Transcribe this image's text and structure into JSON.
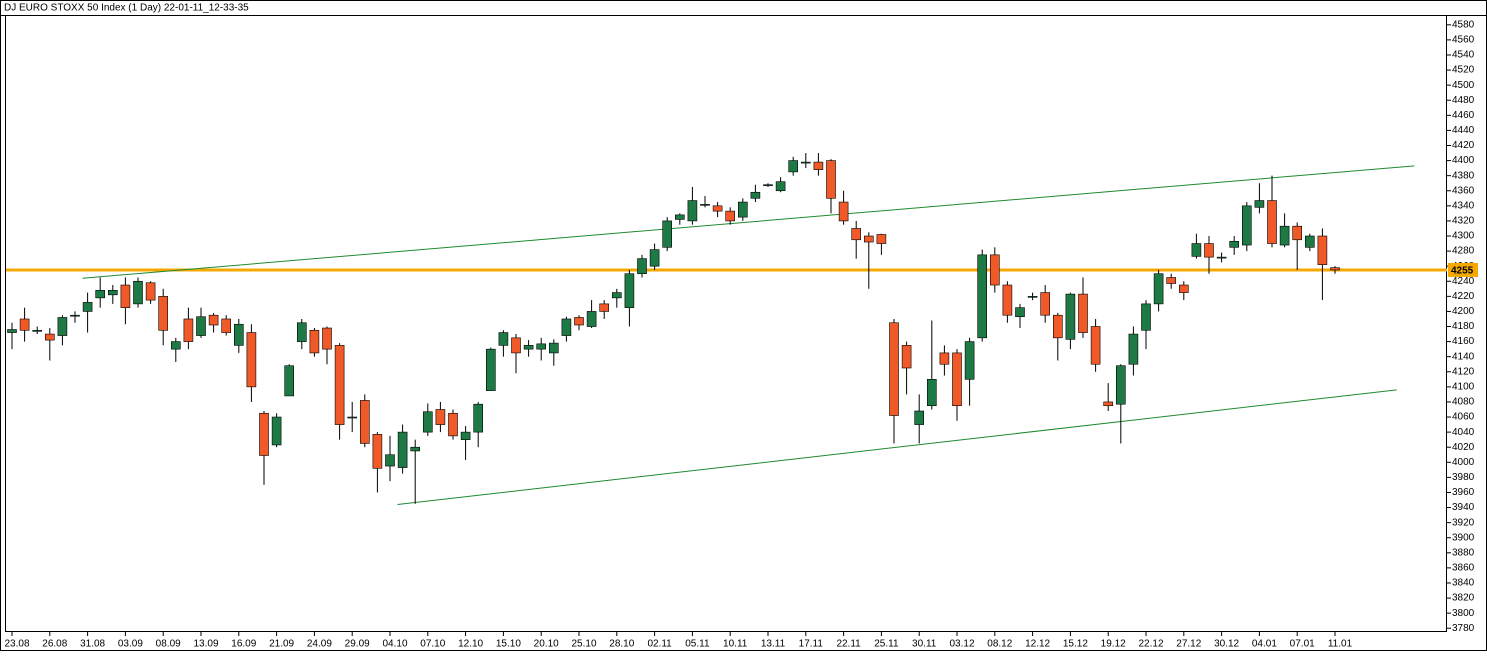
{
  "chart_data": {
    "type": "candlestick",
    "title": "DJ EURO STOXX 50 Index (1 Day) 22-01-11_12-33-35",
    "categories": [
      "23.08",
      null,
      null,
      "26.08",
      null,
      null,
      "31.08",
      null,
      null,
      "03.09",
      null,
      null,
      "08.09",
      null,
      null,
      "13.09",
      null,
      null,
      "16.09",
      null,
      null,
      "21.09",
      null,
      null,
      "24.09",
      null,
      null,
      "29.09",
      null,
      null,
      "04.10",
      null,
      null,
      "07.10",
      null,
      null,
      "12.10",
      null,
      null,
      "15.10",
      null,
      null,
      "20.10",
      null,
      null,
      "25.10",
      null,
      null,
      "28.10",
      null,
      null,
      "02.11",
      null,
      null,
      "05.11",
      null,
      null,
      "10.11",
      null,
      null,
      "13.11",
      null,
      null,
      "17.11",
      null,
      null,
      "22.11",
      null,
      null,
      "25.11",
      null,
      null,
      "30.11",
      null,
      null,
      "03.12",
      null,
      null,
      "08.12",
      null,
      null,
      "12.12",
      null,
      null,
      "15.12",
      null,
      null,
      "19.12",
      null,
      null,
      "22.12",
      null,
      null,
      "27.12",
      null,
      null,
      "30.12",
      null,
      null,
      "04.01",
      null,
      null,
      "07.01",
      null,
      null,
      "11.01"
    ],
    "open": [
      4172,
      4190,
      4175,
      4170,
      4168,
      4195,
      4200,
      4218,
      4222,
      4235,
      4210,
      4238,
      4220,
      4150,
      4190,
      4168,
      4195,
      4190,
      4155,
      4172,
      4065,
      4023,
      4088,
      4160,
      4175,
      4178,
      4155,
      4060,
      4082,
      4037,
      3995,
      3993,
      4015,
      4040,
      4070,
      4065,
      4030,
      4040,
      4095,
      4155,
      4165,
      4150,
      4150,
      4145,
      4168,
      4192,
      4180,
      4210,
      4218,
      4205,
      4250,
      4260,
      4285,
      4322,
      4320,
      4342,
      4340,
      4333,
      4325,
      4350,
      4368,
      4360,
      4385,
      4398,
      4398,
      4400,
      4345,
      4310,
      4300,
      4302,
      4185,
      4155,
      4050,
      4075,
      4145,
      4145,
      4110,
      4165,
      4275,
      4235,
      4193,
      4220,
      4225,
      4195,
      4163,
      4223,
      4180,
      4080,
      4077,
      4130,
      4175,
      4210,
      4245,
      4235,
      4273,
      4290,
      4272,
      4285,
      4288,
      4338,
      4347,
      4288,
      4313,
      4285,
      4300,
      4258
    ],
    "high": [
      4185,
      4205,
      4180,
      4178,
      4195,
      4200,
      4225,
      4245,
      4235,
      4245,
      4245,
      4240,
      4230,
      4165,
      4205,
      4205,
      4198,
      4195,
      4190,
      4183,
      4068,
      4065,
      4130,
      4190,
      4178,
      4180,
      4158,
      4080,
      4090,
      4040,
      4035,
      4050,
      4030,
      4078,
      4080,
      4070,
      4048,
      4080,
      4152,
      4175,
      4170,
      4162,
      4165,
      4163,
      4193,
      4195,
      4215,
      4215,
      4230,
      4255,
      4275,
      4290,
      4325,
      4330,
      4365,
      4353,
      4345,
      4338,
      4350,
      4368,
      4370,
      4378,
      4405,
      4410,
      4410,
      4402,
      4360,
      4320,
      4305,
      4303,
      4190,
      4160,
      4090,
      4188,
      4155,
      4150,
      4165,
      4282,
      4285,
      4240,
      4210,
      4225,
      4235,
      4198,
      4225,
      4245,
      4190,
      4105,
      4130,
      4180,
      4215,
      4255,
      4250,
      4240,
      4303,
      4300,
      4278,
      4300,
      4345,
      4370,
      4380,
      4330,
      4318,
      4303,
      4310,
      4260
    ],
    "low": [
      4150,
      4160,
      4170,
      4135,
      4155,
      4185,
      4172,
      4205,
      4210,
      4183,
      4205,
      4210,
      4155,
      4133,
      4150,
      4165,
      4172,
      4168,
      4145,
      4080,
      3970,
      4020,
      4088,
      4150,
      4140,
      4130,
      4030,
      4040,
      4020,
      3960,
      3975,
      3985,
      3945,
      4035,
      4040,
      4030,
      4003,
      4020,
      4095,
      4140,
      4118,
      4140,
      4135,
      4128,
      4160,
      4175,
      4178,
      4190,
      4205,
      4180,
      4245,
      4255,
      4280,
      4315,
      4315,
      4338,
      4325,
      4315,
      4320,
      4345,
      4365,
      4358,
      4380,
      4390,
      4380,
      4330,
      4315,
      4270,
      4230,
      4275,
      4025,
      4090,
      4025,
      4070,
      4115,
      4055,
      4075,
      4160,
      4225,
      4185,
      4178,
      4215,
      4185,
      4135,
      4150,
      4165,
      4120,
      4068,
      4025,
      4115,
      4150,
      4200,
      4230,
      4215,
      4270,
      4250,
      4265,
      4275,
      4280,
      4330,
      4285,
      4285,
      4255,
      4280,
      4215,
      4250
    ],
    "close": [
      4176,
      4175,
      4175,
      4162,
      4192,
      4195,
      4212,
      4228,
      4228,
      4205,
      4240,
      4215,
      4175,
      4160,
      4160,
      4193,
      4182,
      4172,
      4183,
      4100,
      4009,
      4060,
      4128,
      4185,
      4145,
      4150,
      4050,
      4060,
      4025,
      3992,
      4010,
      4040,
      4020,
      4067,
      4050,
      4035,
      4040,
      4077,
      4150,
      4172,
      4145,
      4155,
      4157,
      4158,
      4190,
      4182,
      4200,
      4200,
      4225,
      4250,
      4270,
      4282,
      4320,
      4328,
      4347,
      4342,
      4333,
      4320,
      4345,
      4358,
      4368,
      4372,
      4400,
      4398,
      4388,
      4350,
      4320,
      4295,
      4292,
      4290,
      4062,
      4125,
      4068,
      4110,
      4130,
      4075,
      4160,
      4275,
      4235,
      4195,
      4205,
      4220,
      4195,
      4165,
      4223,
      4172,
      4130,
      4075,
      4128,
      4170,
      4210,
      4250,
      4237,
      4225,
      4290,
      4272,
      4272,
      4293,
      4340,
      4347,
      4290,
      4313,
      4295,
      4300,
      4262,
      4255
    ],
    "up_color": "#1e7a45",
    "down_color": "#f05a28",
    "ylim": [
      3775,
      4593
    ],
    "yticks": [
      3780,
      3800,
      3820,
      3840,
      3860,
      3880,
      3900,
      3920,
      3940,
      3960,
      3980,
      4000,
      4020,
      4040,
      4060,
      4080,
      4100,
      4120,
      4140,
      4160,
      4180,
      4200,
      4220,
      4240,
      4260,
      4280,
      4300,
      4320,
      4340,
      4360,
      4380,
      4400,
      4420,
      4440,
      4460,
      4480,
      4500,
      4520,
      4540,
      4560,
      4580
    ],
    "trendlines": [
      {
        "x": [
          5.6,
          111.3
        ],
        "y": [
          4244,
          4393
        ],
        "color": "#1f8a2e"
      },
      {
        "x": [
          30.6,
          109.9
        ],
        "y": [
          3944,
          4096
        ],
        "color": "#1f8a2e"
      }
    ],
    "hline": {
      "value": 4255,
      "color": "#f5a800"
    }
  }
}
